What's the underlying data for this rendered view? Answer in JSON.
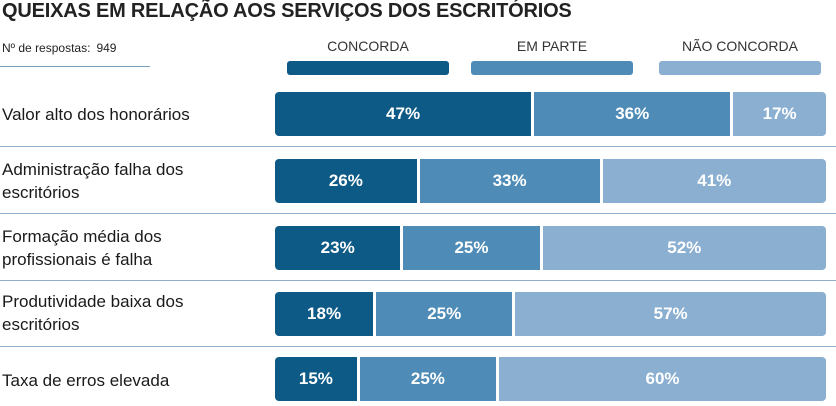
{
  "chart_data": {
    "type": "bar",
    "orientation": "horizontal",
    "stacked": true,
    "title": "QUEIXAS EM RELAÇÃO AOS SERVIÇOS DOS ESCRITÓRIOS",
    "responses_label": "Nº de respostas:",
    "responses_value": "949",
    "unit": "%",
    "categories": [
      "Valor alto dos honorários",
      "Administração falha dos escritórios",
      "Formação média dos profissionais é falha",
      "Produtividade baixa dos escritórios",
      "Taxa de erros elevada"
    ],
    "series": [
      {
        "name": "CONCORDA",
        "color": "#0e5a86",
        "values": [
          47,
          26,
          23,
          18,
          15
        ]
      },
      {
        "name": "EM PARTE",
        "color": "#4e8bb6",
        "values": [
          36,
          33,
          25,
          25,
          25
        ]
      },
      {
        "name": "NÃO CONCORDA",
        "color": "#8aafd0",
        "values": [
          17,
          41,
          52,
          57,
          60
        ]
      }
    ],
    "xlim": [
      0,
      100
    ],
    "legend": "top"
  }
}
